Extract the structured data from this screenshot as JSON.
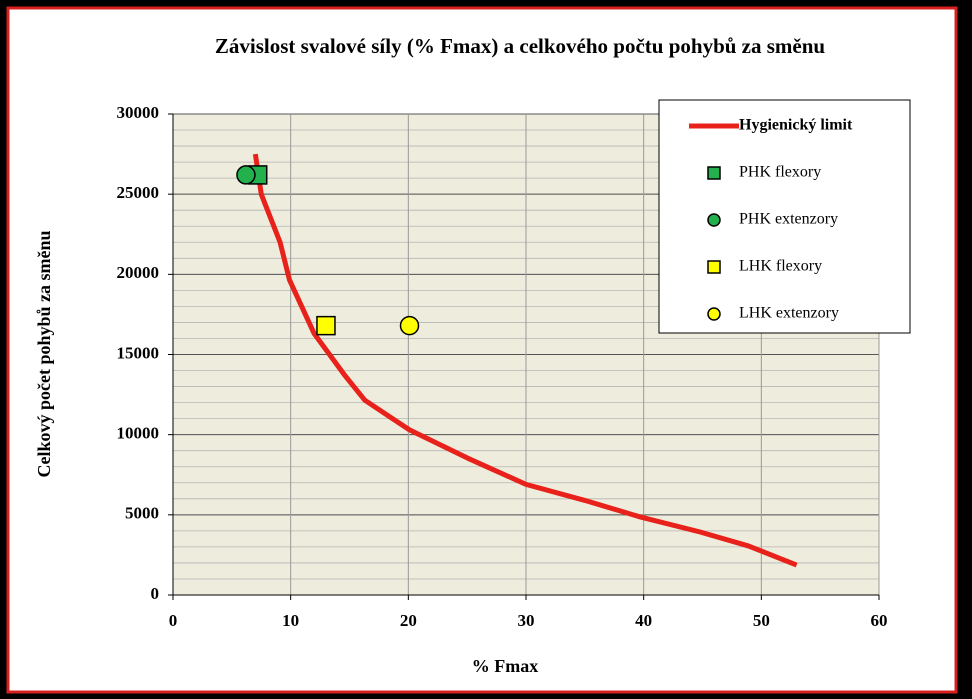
{
  "chart_data": {
    "type": "scatter",
    "title": "Závislost svalové síly (% Fmax) a celkového počtu pohybů za směnu",
    "x_label": "% Fmax",
    "y_label": "Celkový počet pohybů za směnu",
    "xlim": [
      0,
      60
    ],
    "xticks": [
      0,
      10,
      20,
      30,
      40,
      50,
      60
    ],
    "ylim": [
      0,
      30000
    ],
    "yticks": [
      0,
      5000,
      10000,
      15000,
      20000,
      25000,
      30000
    ],
    "grid": true,
    "minor_ystep": 1000,
    "legend": "upper right",
    "series": [
      {
        "name": "Hygienický limit",
        "marker": "line",
        "color": "#e8211b",
        "x": [
          7,
          7.5,
          9.1,
          9.9,
          12,
          14.6,
          16.3,
          20.1,
          25,
          30,
          35,
          39.7,
          44.8,
          48.9,
          53
        ],
        "values": [
          27500,
          25000,
          22000,
          19650,
          16300,
          13700,
          12150,
          10300,
          8550,
          6900,
          5900,
          4870,
          3930,
          3060,
          1870
        ]
      },
      {
        "name": "PHK flexory",
        "marker": "square",
        "color": "#22b14c",
        "x": [
          7.2
        ],
        "values": [
          26200
        ]
      },
      {
        "name": "PHK extenzory",
        "marker": "circle",
        "color": "#22b14c",
        "x": [
          6.2
        ],
        "values": [
          26200
        ]
      },
      {
        "name": "LHK flexory",
        "marker": "square",
        "color": "#ffff00",
        "x": [
          13
        ],
        "values": [
          16800
        ]
      },
      {
        "name": "LHK extenzory",
        "marker": "circle",
        "color": "#ffff00",
        "x": [
          20.1
        ],
        "values": [
          16800
        ]
      }
    ]
  }
}
